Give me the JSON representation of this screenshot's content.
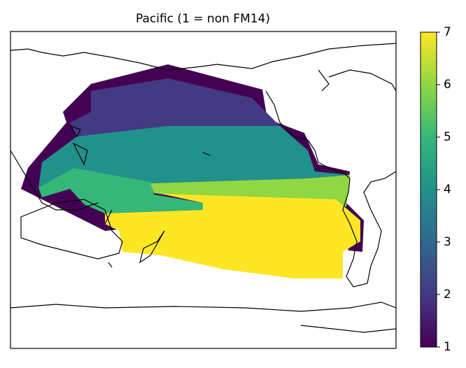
{
  "chart_data": {
    "type": "map",
    "title": "Pacific (1 = non FM14)",
    "values": [
      1,
      2,
      4,
      5,
      6,
      7
    ],
    "colorbar": {
      "lim": [
        1,
        7
      ],
      "ticks": [
        1,
        2,
        3,
        4,
        5,
        6,
        7
      ],
      "colors": [
        "#440154",
        "#443983",
        "#31688e",
        "#21918c",
        "#35b779",
        "#90d743",
        "#fde725"
      ]
    }
  }
}
